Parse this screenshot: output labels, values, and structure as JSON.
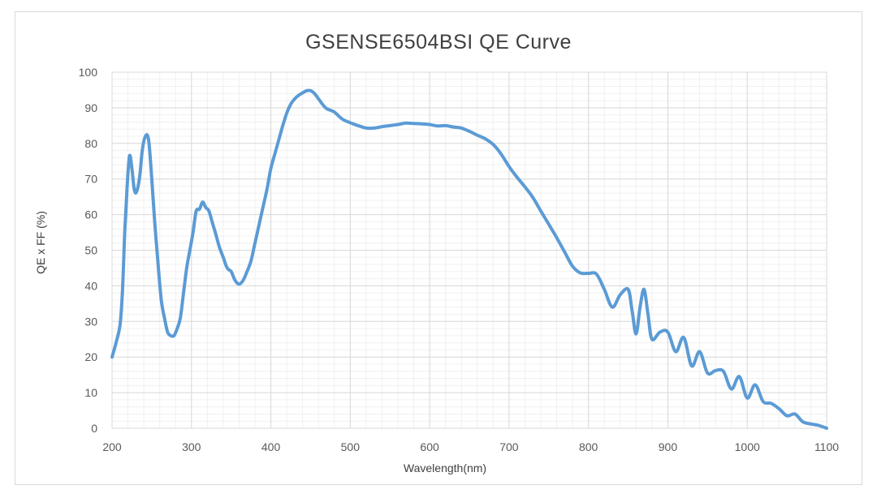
{
  "chart_data": {
    "type": "line",
    "title": "GSENSE6504BSI  QE  Curve",
    "xlabel": "Wavelength(nm)",
    "ylabel": "QE x FF (%)",
    "xlim": [
      200,
      1100
    ],
    "ylim": [
      0,
      100
    ],
    "xticks": [
      200,
      300,
      400,
      500,
      600,
      700,
      800,
      900,
      1000,
      1100
    ],
    "yticks": [
      0,
      10,
      20,
      30,
      40,
      50,
      60,
      70,
      80,
      90,
      100
    ],
    "grid": true,
    "legend": "none",
    "line_color": "#5b9bd5",
    "series": [
      {
        "x": [
          200,
          205,
          210,
          213,
          216,
          219,
          222,
          225,
          228,
          231,
          235,
          238,
          242,
          246,
          250,
          254,
          258,
          262,
          266,
          270,
          274,
          278,
          282,
          286,
          290,
          294,
          298,
          302,
          306,
          310,
          314,
          318,
          322,
          326,
          330,
          335,
          340,
          345,
          350,
          355,
          360,
          365,
          370,
          375,
          380,
          385,
          390,
          395,
          400,
          405,
          410,
          415,
          420,
          425,
          430,
          435,
          440,
          445,
          450,
          455,
          460,
          465,
          470,
          480,
          490,
          500,
          510,
          520,
          530,
          540,
          550,
          560,
          570,
          580,
          590,
          600,
          610,
          620,
          630,
          640,
          650,
          660,
          670,
          680,
          690,
          700,
          710,
          720,
          730,
          740,
          750,
          760,
          770,
          780,
          790,
          800,
          810,
          820,
          830,
          840,
          850,
          855,
          860,
          865,
          870,
          875,
          880,
          890,
          900,
          910,
          920,
          930,
          940,
          950,
          960,
          970,
          980,
          990,
          1000,
          1010,
          1020,
          1030,
          1040,
          1050,
          1060,
          1070,
          1080,
          1090,
          1100
        ],
        "y": [
          20,
          24,
          29,
          38,
          55,
          68,
          76.5,
          73,
          67,
          66.5,
          71,
          78,
          82,
          81,
          70,
          57,
          46,
          36,
          31,
          27,
          26,
          26,
          28,
          31,
          38,
          45,
          50,
          55,
          61,
          61.5,
          63.5,
          62,
          61,
          58,
          55,
          51,
          48,
          45,
          44,
          41.5,
          40.5,
          41.5,
          44,
          47,
          52,
          57,
          62,
          67,
          73,
          77,
          81,
          85,
          88.5,
          91,
          92.5,
          93.5,
          94.2,
          94.8,
          94.8,
          94,
          92.5,
          91,
          89.8,
          88.8,
          86.8,
          85.8,
          85,
          84.3,
          84.3,
          84.7,
          85,
          85.3,
          85.7,
          85.6,
          85.5,
          85.3,
          84.9,
          85,
          84.6,
          84.3,
          83.4,
          82.3,
          81.3,
          79.7,
          77,
          73.5,
          70.5,
          67.8,
          64.8,
          61,
          57.3,
          53.5,
          49.5,
          45.5,
          43.6,
          43.5,
          43.3,
          39,
          34,
          37.5,
          39,
          33,
          26.5,
          34,
          39,
          32,
          25,
          27,
          27,
          21.5,
          25.5,
          17.5,
          21.5,
          15.5,
          16.2,
          16,
          11,
          14.5,
          8.5,
          12.2,
          7.5,
          7,
          5.5,
          3.5,
          4,
          1.8,
          1.2,
          0.8,
          0
        ]
      }
    ]
  }
}
